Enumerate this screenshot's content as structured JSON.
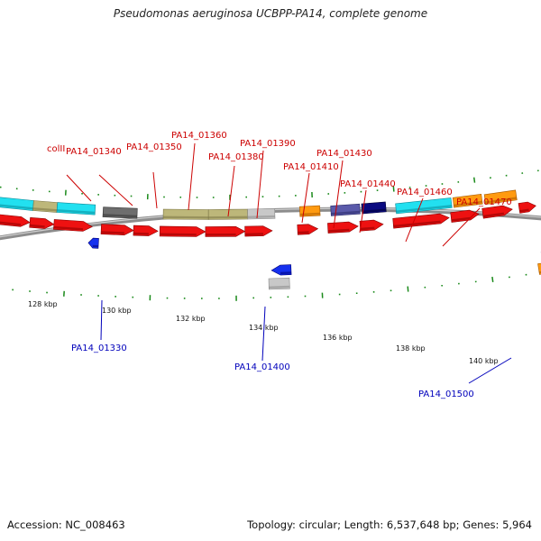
{
  "title": "Pseudomonas aeruginosa UCBPP-PA14, complete genome",
  "footer": {
    "accession": "Accession: NC_008463",
    "stats": "Topology: circular; Length: 6,537,648 bp; Genes: 5,964"
  },
  "colors": {
    "backbone": "#8c8c8c",
    "tick": "#1a8a1a",
    "label_top": "#cc0000",
    "label_bottom": "#0000bb",
    "cds_red": "#ee1111",
    "cyan": "#22e0f0",
    "khaki": "#bdb77a",
    "gray_dark": "#6e6e6e",
    "gray_light": "#c8c8c8",
    "orange": "#ff9a10",
    "navy": "#0a0a80",
    "slate": "#5a5aaa",
    "blue": "#1530ee"
  },
  "ruler": {
    "labels": [
      "128 kbp",
      "130 kbp",
      "132 kbp",
      "134 kbp",
      "136 kbp",
      "138 kbp",
      "140 kbp"
    ]
  },
  "features_top": [
    "colII",
    "PA14_01340",
    "PA14_01350",
    "PA14_01360",
    "PA14_01380",
    "PA14_01390",
    "PA14_01410",
    "PA14_01430",
    "PA14_01440",
    "PA14_01460",
    "PA14_01470"
  ],
  "features_bottom": [
    "PA14_01330",
    "PA14_01400",
    "PA14_01500"
  ]
}
